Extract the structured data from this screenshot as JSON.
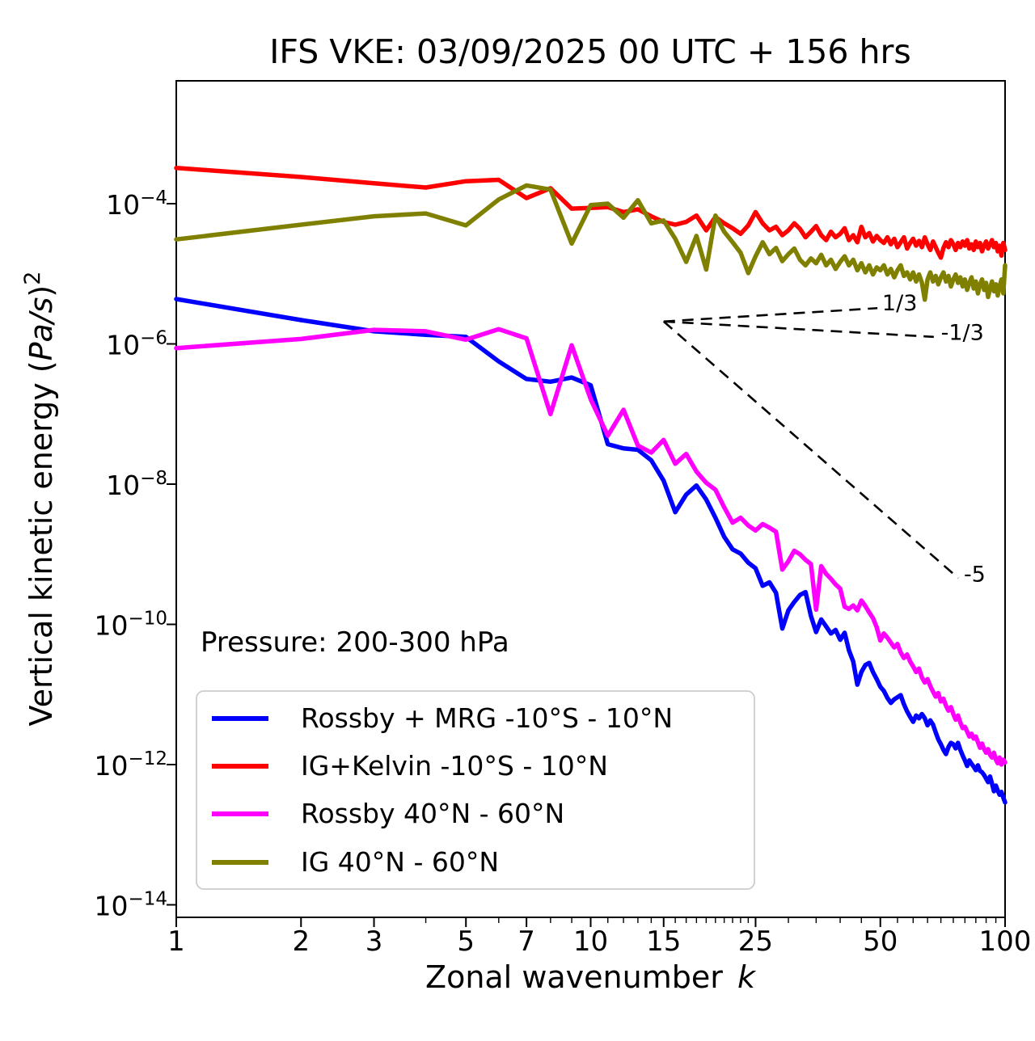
{
  "title": "IFS VKE: 03/09/2025 00 UTC + 156 hrs",
  "annotation": "Pressure: 200-300 hPa",
  "x_axis": {
    "label_text": "Zonal wavenumber",
    "label_var": "k",
    "major_ticks": [
      1,
      2,
      3,
      5,
      7,
      10,
      15,
      25,
      50,
      100
    ],
    "minor_ticks": [
      4,
      6,
      8,
      9,
      11,
      12,
      13,
      14,
      16,
      17,
      18,
      19,
      20,
      21,
      22,
      23,
      24,
      30,
      35,
      40,
      45,
      55,
      60,
      65,
      70,
      75,
      80,
      85,
      90,
      95
    ]
  },
  "y_axis": {
    "label_prefix": "Vertical kinetic energy (",
    "label_units": "Pa/s",
    "label_close": ")",
    "label_exp": "2",
    "major_tick_exponents": [
      -4,
      -6,
      -8,
      -10,
      -12,
      -14
    ]
  },
  "chart_data": {
    "type": "line",
    "xscale": "log",
    "yscale": "log",
    "xlim": [
      1,
      100
    ],
    "ylim_log10": [
      -14.18,
      -2.25
    ],
    "x_is_integer_wavenumbers": "k = 1..100",
    "grid": "off",
    "legend_position": "lower left",
    "series": [
      {
        "name": "Rossby + MRG -10°S - 10°N",
        "color": "#0000ff",
        "log10_values": [
          -5.36,
          -5.66,
          -5.82,
          -5.87,
          -5.9,
          -6.25,
          -6.5,
          -6.54,
          -6.48,
          -6.59,
          -7.43,
          -7.49,
          -7.51,
          -7.66,
          -7.95,
          -8.4,
          -8.15,
          -8.02,
          -8.22,
          -8.48,
          -8.75,
          -8.93,
          -8.99,
          -9.12,
          -9.2,
          -9.45,
          -9.4,
          -9.55,
          -10.06,
          -9.8,
          -9.68,
          -9.58,
          -9.54,
          -9.88,
          -10.11,
          -9.93,
          -10.03,
          -10.13,
          -10.08,
          -10.22,
          -10.12,
          -10.37,
          -10.53,
          -10.86,
          -10.68,
          -10.58,
          -10.55,
          -10.68,
          -10.78,
          -10.89,
          -10.95,
          -11.05,
          -11.12,
          -11.07,
          -11.04,
          -11.01,
          -11.14,
          -11.24,
          -11.32,
          -11.39,
          -11.3,
          -11.34,
          -11.28,
          -11.34,
          -11.44,
          -11.37,
          -11.43,
          -11.54,
          -11.64,
          -11.71,
          -11.79,
          -11.85,
          -11.75,
          -11.69,
          -11.71,
          -11.77,
          -11.69,
          -11.79,
          -11.87,
          -11.94,
          -12.02,
          -11.94,
          -11.99,
          -12.03,
          -12.08,
          -12.01,
          -12.09,
          -12.11,
          -12.15,
          -12.2,
          -12.25,
          -12.17,
          -12.27,
          -12.38,
          -12.3,
          -12.37,
          -12.43,
          -12.39,
          -12.47,
          -12.54
        ]
      },
      {
        "name": "IG+Kelvin -10°S - 10°N",
        "color": "#ff0000",
        "log10_values": [
          -3.49,
          -3.62,
          -3.71,
          -3.77,
          -3.68,
          -3.66,
          -3.92,
          -3.78,
          -4.07,
          -4.06,
          -4.05,
          -4.12,
          -4.08,
          -4.18,
          -4.26,
          -4.3,
          -4.26,
          -4.17,
          -4.38,
          -4.19,
          -4.28,
          -4.35,
          -4.43,
          -4.31,
          -4.12,
          -4.28,
          -4.38,
          -4.33,
          -4.45,
          -4.38,
          -4.28,
          -4.36,
          -4.48,
          -4.4,
          -4.32,
          -4.45,
          -4.52,
          -4.4,
          -4.48,
          -4.43,
          -4.35,
          -4.52,
          -4.45,
          -4.55,
          -4.33,
          -4.48,
          -4.42,
          -4.54,
          -4.46,
          -4.52,
          -4.56,
          -4.48,
          -4.58,
          -4.5,
          -4.62,
          -4.55,
          -4.48,
          -4.64,
          -4.56,
          -4.5,
          -4.6,
          -4.53,
          -4.62,
          -4.48,
          -4.58,
          -4.66,
          -4.54,
          -4.62,
          -4.7,
          -4.77,
          -4.63,
          -4.55,
          -4.62,
          -4.52,
          -4.58,
          -4.66,
          -4.56,
          -4.62,
          -4.54,
          -4.6,
          -4.52,
          -4.64,
          -4.58,
          -4.66,
          -4.54,
          -4.62,
          -4.56,
          -4.68,
          -4.6,
          -4.54,
          -4.64,
          -4.58,
          -4.52,
          -4.62,
          -4.56,
          -4.68,
          -4.6,
          -4.74,
          -4.56,
          -4.66
        ]
      },
      {
        "name": "Rossby 40°N - 60°N",
        "color": "#ff00ff",
        "log10_values": [
          -6.06,
          -5.93,
          -5.8,
          -5.82,
          -5.94,
          -5.79,
          -5.92,
          -7.0,
          -6.02,
          -6.79,
          -7.31,
          -6.94,
          -7.45,
          -7.55,
          -7.37,
          -7.71,
          -7.57,
          -7.82,
          -7.98,
          -8.08,
          -8.33,
          -8.55,
          -8.48,
          -8.59,
          -8.66,
          -8.57,
          -8.62,
          -8.68,
          -9.22,
          -9.1,
          -8.95,
          -9.0,
          -9.08,
          -9.14,
          -9.79,
          -9.17,
          -9.28,
          -9.35,
          -9.43,
          -9.49,
          -9.75,
          -9.78,
          -9.73,
          -9.8,
          -9.66,
          -9.74,
          -9.83,
          -9.91,
          -10.04,
          -10.23,
          -10.13,
          -10.19,
          -10.26,
          -10.33,
          -10.28,
          -10.4,
          -10.48,
          -10.43,
          -10.53,
          -10.6,
          -10.68,
          -10.63,
          -10.76,
          -10.83,
          -10.78,
          -10.88,
          -10.96,
          -11.03,
          -10.98,
          -11.1,
          -11.06,
          -11.16,
          -11.23,
          -11.18,
          -11.28,
          -11.36,
          -11.3,
          -11.4,
          -11.48,
          -11.46,
          -11.53,
          -11.6,
          -11.56,
          -11.63,
          -11.6,
          -11.68,
          -11.76,
          -11.7,
          -11.78,
          -11.83,
          -11.78,
          -11.86,
          -11.9,
          -11.83,
          -11.93,
          -11.98,
          -11.9,
          -12.0,
          -11.93,
          -11.97
        ]
      },
      {
        "name": "IG 40°N - 60°N",
        "color": "#808000",
        "log10_values": [
          -4.51,
          -4.3,
          -4.18,
          -4.14,
          -4.31,
          -3.94,
          -3.74,
          -3.8,
          -4.57,
          -4.02,
          -4.0,
          -4.2,
          -3.95,
          -4.28,
          -4.24,
          -4.5,
          -4.83,
          -4.46,
          -4.94,
          -4.17,
          -4.4,
          -4.55,
          -4.7,
          -4.99,
          -4.75,
          -4.55,
          -4.72,
          -4.63,
          -4.82,
          -4.72,
          -4.64,
          -4.8,
          -4.88,
          -4.78,
          -4.85,
          -4.73,
          -4.88,
          -4.8,
          -4.93,
          -4.83,
          -4.75,
          -4.88,
          -4.8,
          -4.95,
          -4.85,
          -4.98,
          -4.88,
          -5.01,
          -4.91,
          -4.95,
          -4.88,
          -5.01,
          -4.93,
          -5.05,
          -4.95,
          -4.88,
          -5.03,
          -4.98,
          -5.08,
          -4.98,
          -5.11,
          -5.01,
          -5.13,
          -5.37,
          -5.08,
          -4.98,
          -5.11,
          -5.03,
          -5.15,
          -5.05,
          -4.98,
          -5.11,
          -5.03,
          -5.18,
          -5.08,
          -5.01,
          -5.13,
          -5.05,
          -5.18,
          -5.08,
          -5.23,
          -5.13,
          -5.05,
          -5.21,
          -5.11,
          -5.28,
          -5.15,
          -5.08,
          -5.23,
          -5.13,
          -5.33,
          -5.21,
          -5.11,
          -5.25,
          -5.15,
          -5.31,
          -5.18,
          -5.08,
          -5.28,
          -4.88
        ]
      }
    ],
    "reference_lines": [
      {
        "label": "1/3",
        "x": [
          15.0,
          49.2
        ],
        "log10_y": [
          -5.68,
          -5.49
        ],
        "label_at": [
          50.5,
          -5.52
        ]
      },
      {
        "label": "-1/3",
        "x": [
          15.0,
          67.3
        ],
        "log10_y": [
          -5.68,
          -5.9
        ],
        "label_at": [
          70.0,
          -5.94
        ]
      },
      {
        "label": "-5",
        "x": [
          15.0,
          77.1
        ],
        "log10_y": [
          -5.68,
          -9.34
        ],
        "label_at": [
          79.5,
          -9.39
        ]
      }
    ],
    "legend_entries": [
      "Rossby + MRG -10°S - 10°N",
      "IG+Kelvin -10°S - 10°N",
      "Rossby 40°N - 60°N",
      "IG 40°N - 60°N"
    ]
  }
}
